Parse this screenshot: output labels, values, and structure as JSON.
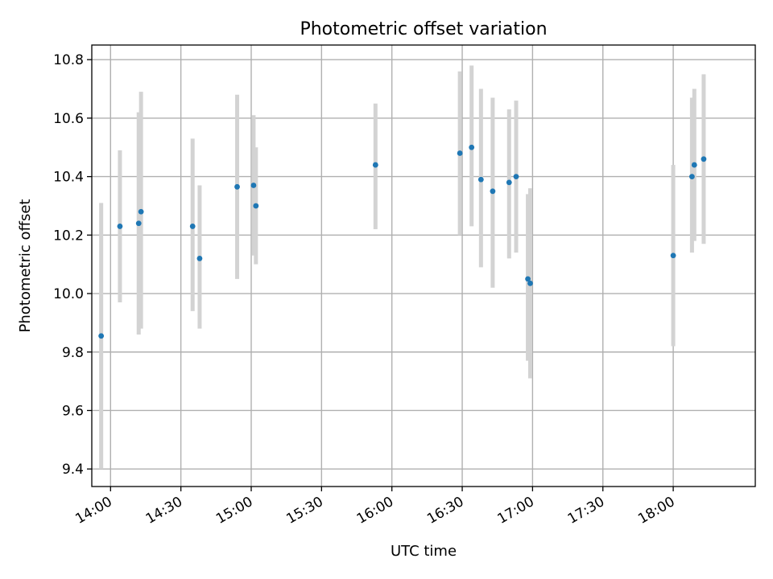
{
  "chart_data": {
    "type": "scatter",
    "title": "Photometric offset variation",
    "xlabel": "UTC time",
    "ylabel": "Photometric offset",
    "x_axis_type": "time",
    "x_range": [
      "13:52",
      "18:35"
    ],
    "y_range": [
      9.34,
      10.85
    ],
    "yticks": [
      9.4,
      9.6,
      9.8,
      10.0,
      10.2,
      10.4,
      10.6,
      10.8
    ],
    "ytick_labels": [
      "9.4",
      "9.6",
      "9.8",
      "10.0",
      "10.2",
      "10.4",
      "10.6",
      "10.8"
    ],
    "xticks": [
      "14:00",
      "14:30",
      "15:00",
      "15:30",
      "16:00",
      "16:30",
      "17:00",
      "17:30",
      "18:00"
    ],
    "xtick_labels": [
      "14:00",
      "14:30",
      "15:00",
      "15:30",
      "16:00",
      "16:30",
      "17:00",
      "17:30",
      "18:00"
    ],
    "grid": true,
    "legend": "none",
    "marker_color": "#1f77b4",
    "errorbar_color": "#d3d3d3",
    "points": [
      {
        "time": "13:56",
        "y": 9.855,
        "err_low": 9.4,
        "err_high": 10.31
      },
      {
        "time": "14:04",
        "y": 10.23,
        "err_low": 9.97,
        "err_high": 10.49
      },
      {
        "time": "14:12",
        "y": 10.24,
        "err_low": 9.86,
        "err_high": 10.62
      },
      {
        "time": "14:13",
        "y": 10.28,
        "err_low": 9.88,
        "err_high": 10.69
      },
      {
        "time": "14:35",
        "y": 10.23,
        "err_low": 9.94,
        "err_high": 10.53
      },
      {
        "time": "14:38",
        "y": 10.12,
        "err_low": 9.88,
        "err_high": 10.37
      },
      {
        "time": "14:54",
        "y": 10.365,
        "err_low": 10.05,
        "err_high": 10.68
      },
      {
        "time": "15:01",
        "y": 10.37,
        "err_low": 10.13,
        "err_high": 10.61
      },
      {
        "time": "15:02",
        "y": 10.3,
        "err_low": 10.1,
        "err_high": 10.5
      },
      {
        "time": "15:53",
        "y": 10.44,
        "err_low": 10.22,
        "err_high": 10.65
      },
      {
        "time": "16:29",
        "y": 10.48,
        "err_low": 10.2,
        "err_high": 10.76
      },
      {
        "time": "16:34",
        "y": 10.5,
        "err_low": 10.23,
        "err_high": 10.78
      },
      {
        "time": "16:38",
        "y": 10.39,
        "err_low": 10.09,
        "err_high": 10.7
      },
      {
        "time": "16:43",
        "y": 10.35,
        "err_low": 10.02,
        "err_high": 10.67
      },
      {
        "time": "16:50",
        "y": 10.38,
        "err_low": 10.12,
        "err_high": 10.63
      },
      {
        "time": "16:53",
        "y": 10.4,
        "err_low": 10.14,
        "err_high": 10.66
      },
      {
        "time": "16:58",
        "y": 10.05,
        "err_low": 9.77,
        "err_high": 10.34
      },
      {
        "time": "16:59",
        "y": 10.035,
        "err_low": 9.71,
        "err_high": 10.36
      },
      {
        "time": "18:00",
        "y": 10.13,
        "err_low": 9.82,
        "err_high": 10.44
      },
      {
        "time": "18:08",
        "y": 10.4,
        "err_low": 10.14,
        "err_high": 10.67
      },
      {
        "time": "18:09",
        "y": 10.44,
        "err_low": 10.18,
        "err_high": 10.7
      },
      {
        "time": "18:13",
        "y": 10.46,
        "err_low": 10.17,
        "err_high": 10.75
      }
    ]
  }
}
